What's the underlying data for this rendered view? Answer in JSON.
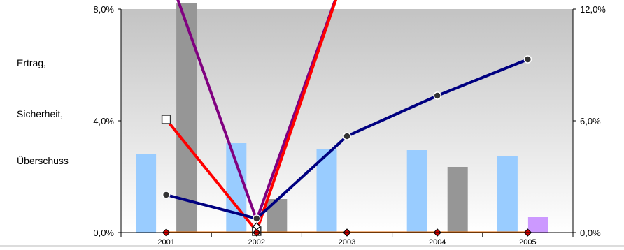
{
  "chart_data": {
    "type": "bar",
    "title": "",
    "categories": [
      "2001",
      "2002",
      "2003",
      "2004",
      "2005"
    ],
    "y_left": {
      "ylim": [
        0,
        8
      ],
      "ticks": [
        "0,0%",
        "4,0%",
        "8,0%"
      ]
    },
    "y_right": {
      "ylim": [
        0,
        12
      ],
      "ticks": [
        "0,0%",
        "6,0%",
        "12,0%"
      ]
    },
    "side_labels": [
      "Ertrag,",
      "Sicherheit,",
      "Überschuss"
    ],
    "grid": false,
    "background_gradient": [
      "#c3c3c3",
      "#ffffff"
    ],
    "bar_series": [
      {
        "color": "#99ccff",
        "axis": "left",
        "values": [
          2.8,
          3.2,
          3.0,
          2.95,
          2.75
        ]
      },
      {
        "color": "#969696",
        "axis": "left",
        "values": [
          8.2,
          1.2,
          0,
          2.35,
          0
        ]
      },
      {
        "color": "#cc99ff",
        "axis": "left",
        "values": [
          0,
          0,
          0,
          0,
          0.55
        ]
      }
    ],
    "line_series": [
      {
        "color": "#ff0000",
        "axis": "left",
        "marker": "square",
        "values": [
          4.05,
          0.05,
          9.5,
          null,
          null
        ]
      },
      {
        "color": "#800080",
        "axis": "left",
        "marker": "none",
        "values": [
          9.5,
          0.45,
          9.5,
          null,
          null
        ]
      },
      {
        "color": "#000080",
        "axis": "left",
        "marker": "circle",
        "values": [
          1.35,
          0.5,
          3.45,
          4.9,
          6.2
        ]
      },
      {
        "color": "#e36c09",
        "axis": "left",
        "marker": "diamond",
        "values": [
          0,
          0,
          0,
          0,
          0
        ]
      }
    ],
    "extra_markers": [
      {
        "category": "2002",
        "value": 0.12,
        "shape": "diamond",
        "fill": "#ffffff"
      }
    ]
  }
}
